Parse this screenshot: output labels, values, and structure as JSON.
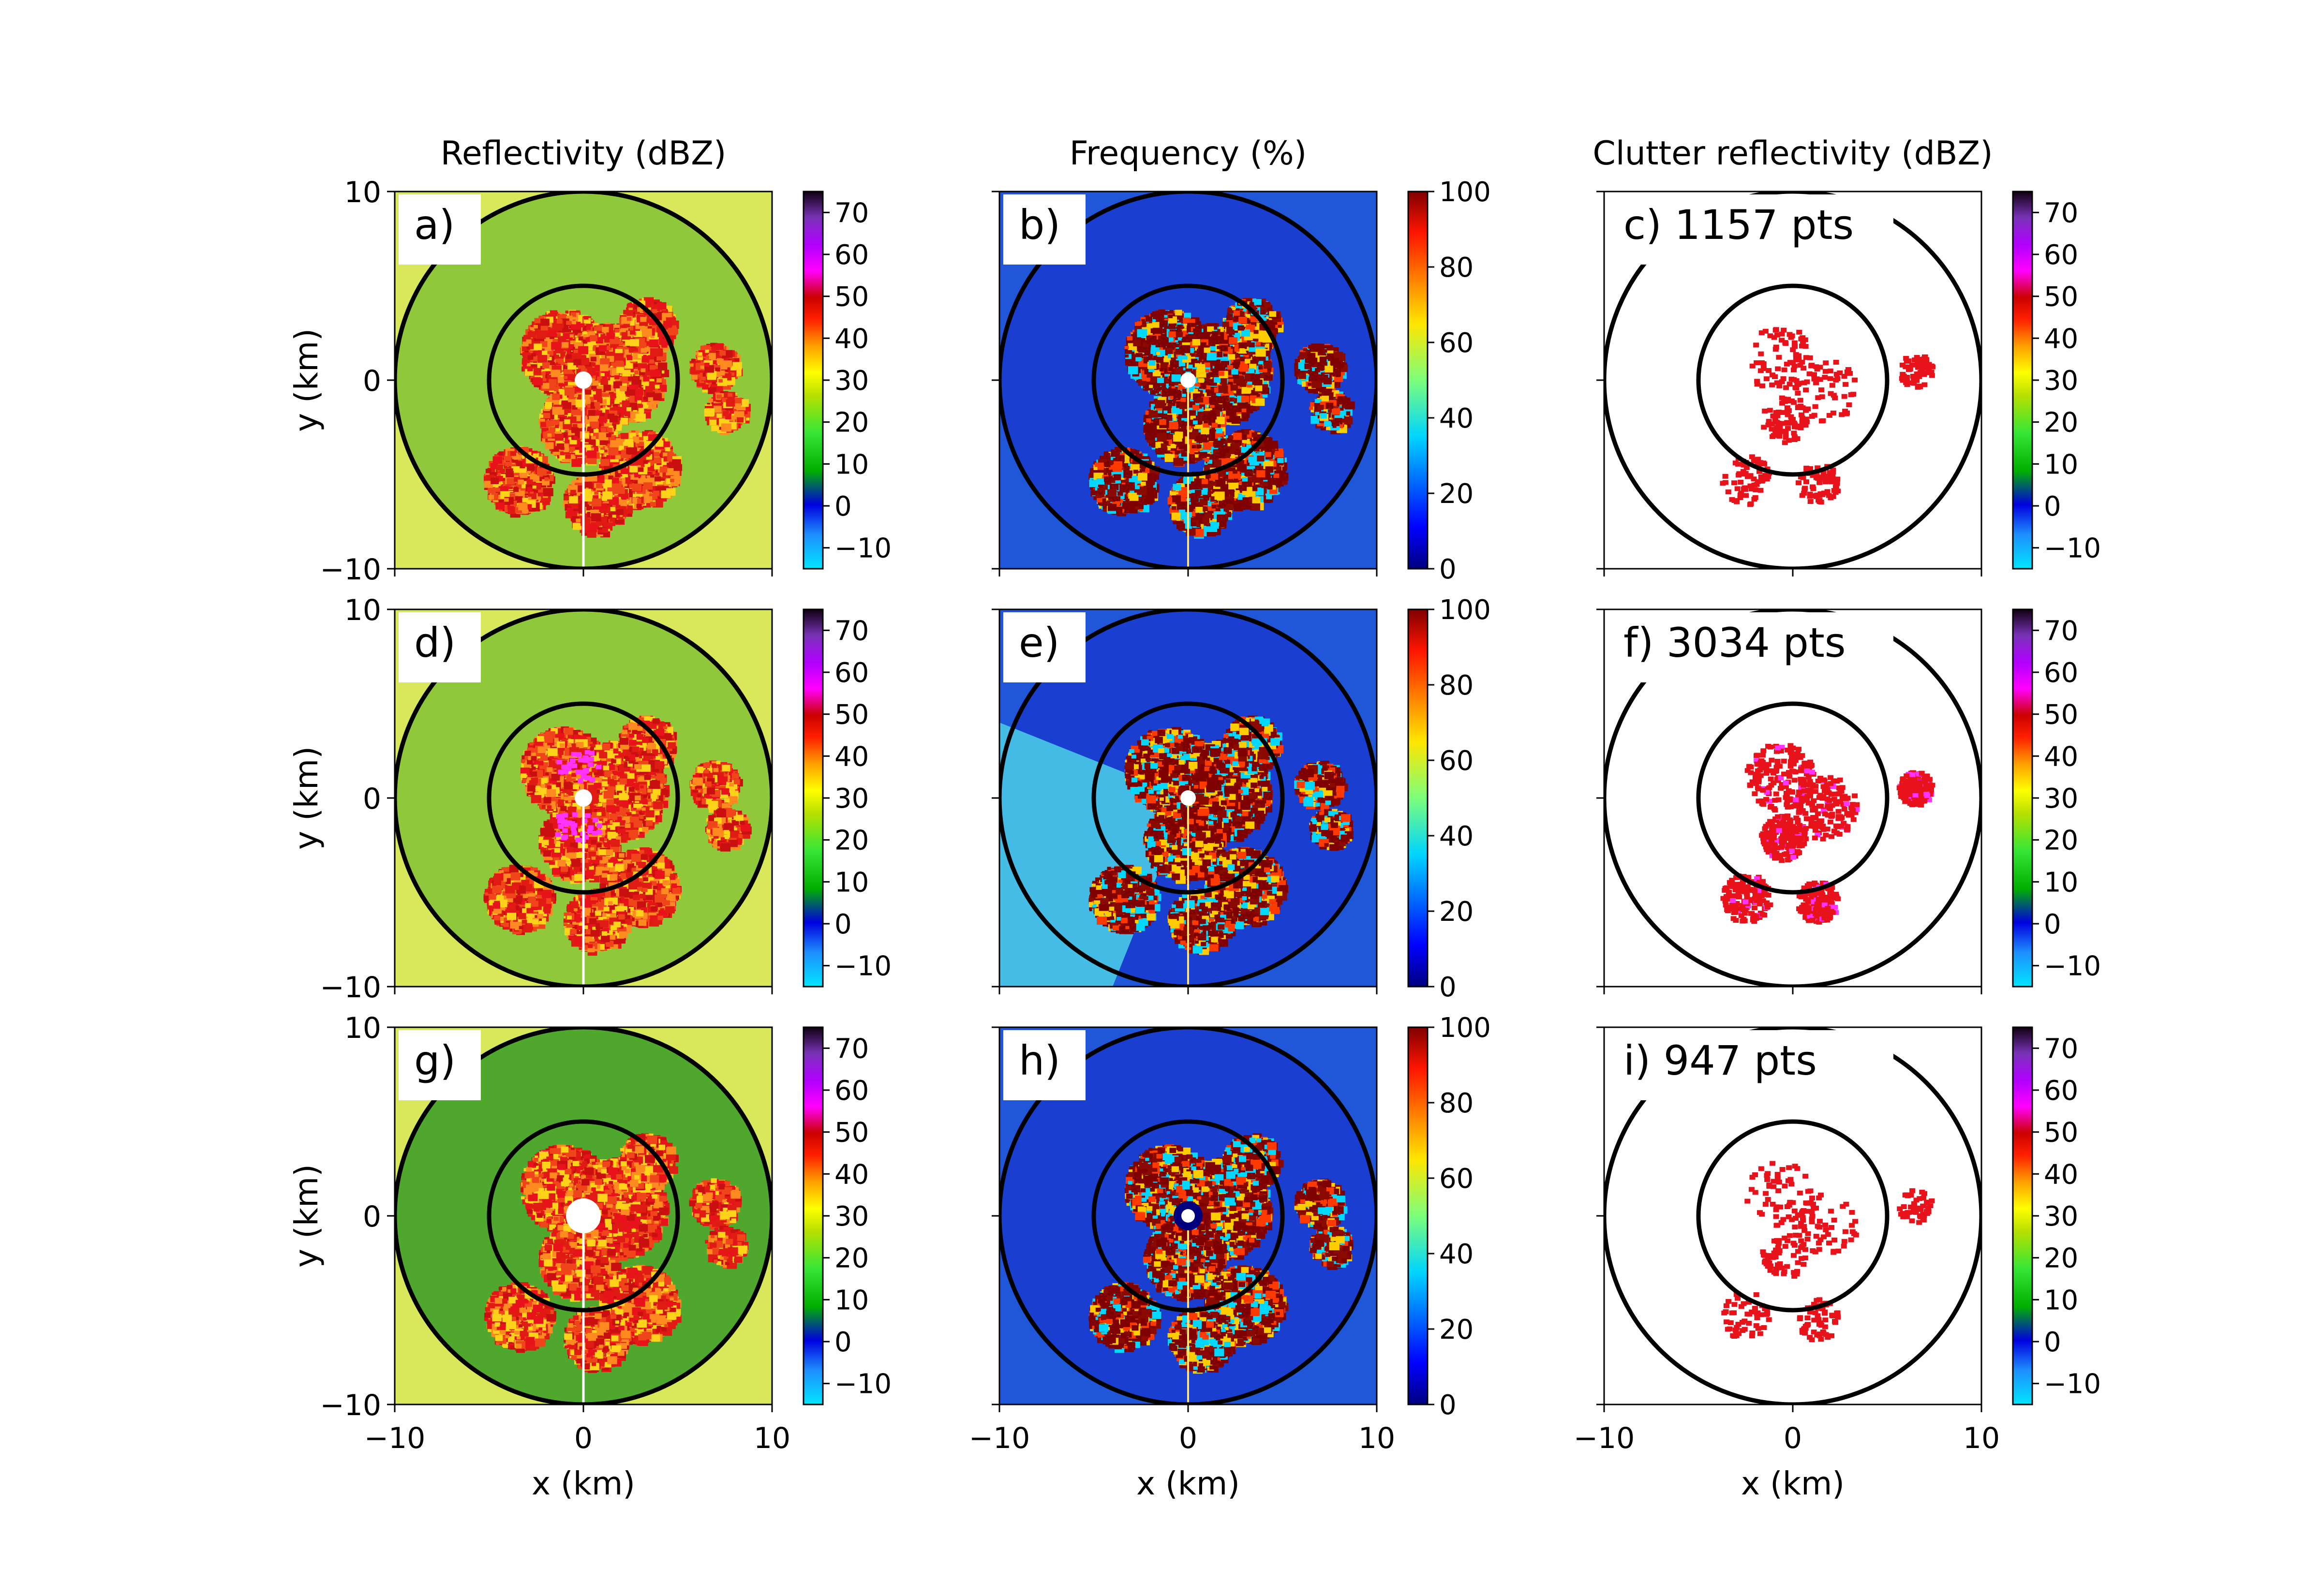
{
  "figure": {
    "column_titles": [
      "Reflectivity (dBZ)",
      "Frequency (%)",
      "Clutter reflectivity (dBZ)"
    ],
    "xlabel": "x (km)",
    "ylabel": "y (km)",
    "colors": {
      "reflectivity_background": "#8fc83a",
      "frequency_background": "#1f57d8",
      "clutter_marks": "#e8121a",
      "frequency_marks": "#7f0000",
      "range_rings": "#000000"
    }
  },
  "chart_data": [
    {
      "panel": "a",
      "label": "a)",
      "type": "heatmap",
      "field": "reflectivity",
      "xlim": [
        -10,
        10
      ],
      "ylim": [
        -10,
        10
      ],
      "xticks": [
        "−10",
        "0",
        "10"
      ],
      "yticks": [
        "−10",
        "0",
        "10"
      ],
      "range_rings_km": [
        5,
        10
      ],
      "colorbar": {
        "ticks": [
          "−10",
          "0",
          "10",
          "20",
          "30",
          "40",
          "50",
          "60",
          "70"
        ],
        "range": [
          -15,
          75
        ]
      }
    },
    {
      "panel": "b",
      "label": "b)",
      "type": "heatmap",
      "field": "frequency",
      "xlim": [
        -10,
        10
      ],
      "ylim": [
        -10,
        10
      ],
      "xticks": [
        "−10",
        "0",
        "10"
      ],
      "yticks": [
        "−10",
        "0",
        "10"
      ],
      "range_rings_km": [
        5,
        10
      ],
      "colorbar": {
        "ticks": [
          "0",
          "20",
          "40",
          "60",
          "80",
          "100"
        ],
        "range": [
          0,
          100
        ]
      }
    },
    {
      "panel": "c",
      "label": "c) 1157 pts",
      "points": 1157,
      "type": "scatter",
      "field": "clutter_reflectivity",
      "xlim": [
        -10,
        10
      ],
      "ylim": [
        -10,
        10
      ],
      "xticks": [
        "−10",
        "0",
        "10"
      ],
      "yticks": [
        "−10",
        "0",
        "10"
      ],
      "range_rings_km": [
        5,
        10
      ],
      "colorbar": {
        "ticks": [
          "−10",
          "0",
          "10",
          "20",
          "30",
          "40",
          "50",
          "60",
          "70"
        ],
        "range": [
          -15,
          75
        ]
      }
    },
    {
      "panel": "d",
      "label": "d)",
      "type": "heatmap",
      "field": "reflectivity",
      "xlim": [
        -10,
        10
      ],
      "ylim": [
        -10,
        10
      ],
      "xticks": [
        "−10",
        "0",
        "10"
      ],
      "yticks": [
        "−10",
        "0",
        "10"
      ],
      "range_rings_km": [
        5,
        10
      ],
      "colorbar": {
        "ticks": [
          "−10",
          "0",
          "10",
          "20",
          "30",
          "40",
          "50",
          "60",
          "70"
        ],
        "range": [
          -15,
          75
        ]
      }
    },
    {
      "panel": "e",
      "label": "e)",
      "type": "heatmap",
      "field": "frequency",
      "xlim": [
        -10,
        10
      ],
      "ylim": [
        -10,
        10
      ],
      "xticks": [
        "−10",
        "0",
        "10"
      ],
      "yticks": [
        "−10",
        "0",
        "10"
      ],
      "range_rings_km": [
        5,
        10
      ],
      "colorbar": {
        "ticks": [
          "0",
          "20",
          "40",
          "60",
          "80",
          "100"
        ],
        "range": [
          0,
          100
        ]
      }
    },
    {
      "panel": "f",
      "label": "f) 3034 pts",
      "points": 3034,
      "type": "scatter",
      "field": "clutter_reflectivity",
      "xlim": [
        -10,
        10
      ],
      "ylim": [
        -10,
        10
      ],
      "xticks": [
        "−10",
        "0",
        "10"
      ],
      "yticks": [
        "−10",
        "0",
        "10"
      ],
      "range_rings_km": [
        5,
        10
      ],
      "colorbar": {
        "ticks": [
          "−10",
          "0",
          "10",
          "20",
          "30",
          "40",
          "50",
          "60",
          "70"
        ],
        "range": [
          -15,
          75
        ]
      }
    },
    {
      "panel": "g",
      "label": "g)",
      "type": "heatmap",
      "field": "reflectivity",
      "xlim": [
        -10,
        10
      ],
      "ylim": [
        -10,
        10
      ],
      "xticks": [
        "−10",
        "0",
        "10"
      ],
      "yticks": [
        "−10",
        "0",
        "10"
      ],
      "range_rings_km": [
        5,
        10
      ],
      "colorbar": {
        "ticks": [
          "−10",
          "0",
          "10",
          "20",
          "30",
          "40",
          "50",
          "60",
          "70"
        ],
        "range": [
          -15,
          75
        ]
      }
    },
    {
      "panel": "h",
      "label": "h)",
      "type": "heatmap",
      "field": "frequency",
      "xlim": [
        -10,
        10
      ],
      "ylim": [
        -10,
        10
      ],
      "xticks": [
        "−10",
        "0",
        "10"
      ],
      "yticks": [
        "−10",
        "0",
        "10"
      ],
      "range_rings_km": [
        5,
        10
      ],
      "colorbar": {
        "ticks": [
          "0",
          "20",
          "40",
          "60",
          "80",
          "100"
        ],
        "range": [
          0,
          100
        ]
      }
    },
    {
      "panel": "i",
      "label": "i) 947 pts",
      "points": 947,
      "type": "scatter",
      "field": "clutter_reflectivity",
      "xlim": [
        -10,
        10
      ],
      "ylim": [
        -10,
        10
      ],
      "xticks": [
        "−10",
        "0",
        "10"
      ],
      "yticks": [
        "−10",
        "0",
        "10"
      ],
      "range_rings_km": [
        5,
        10
      ],
      "colorbar": {
        "ticks": [
          "−10",
          "0",
          "10",
          "20",
          "30",
          "40",
          "50",
          "60",
          "70"
        ],
        "range": [
          -15,
          75
        ]
      }
    }
  ]
}
